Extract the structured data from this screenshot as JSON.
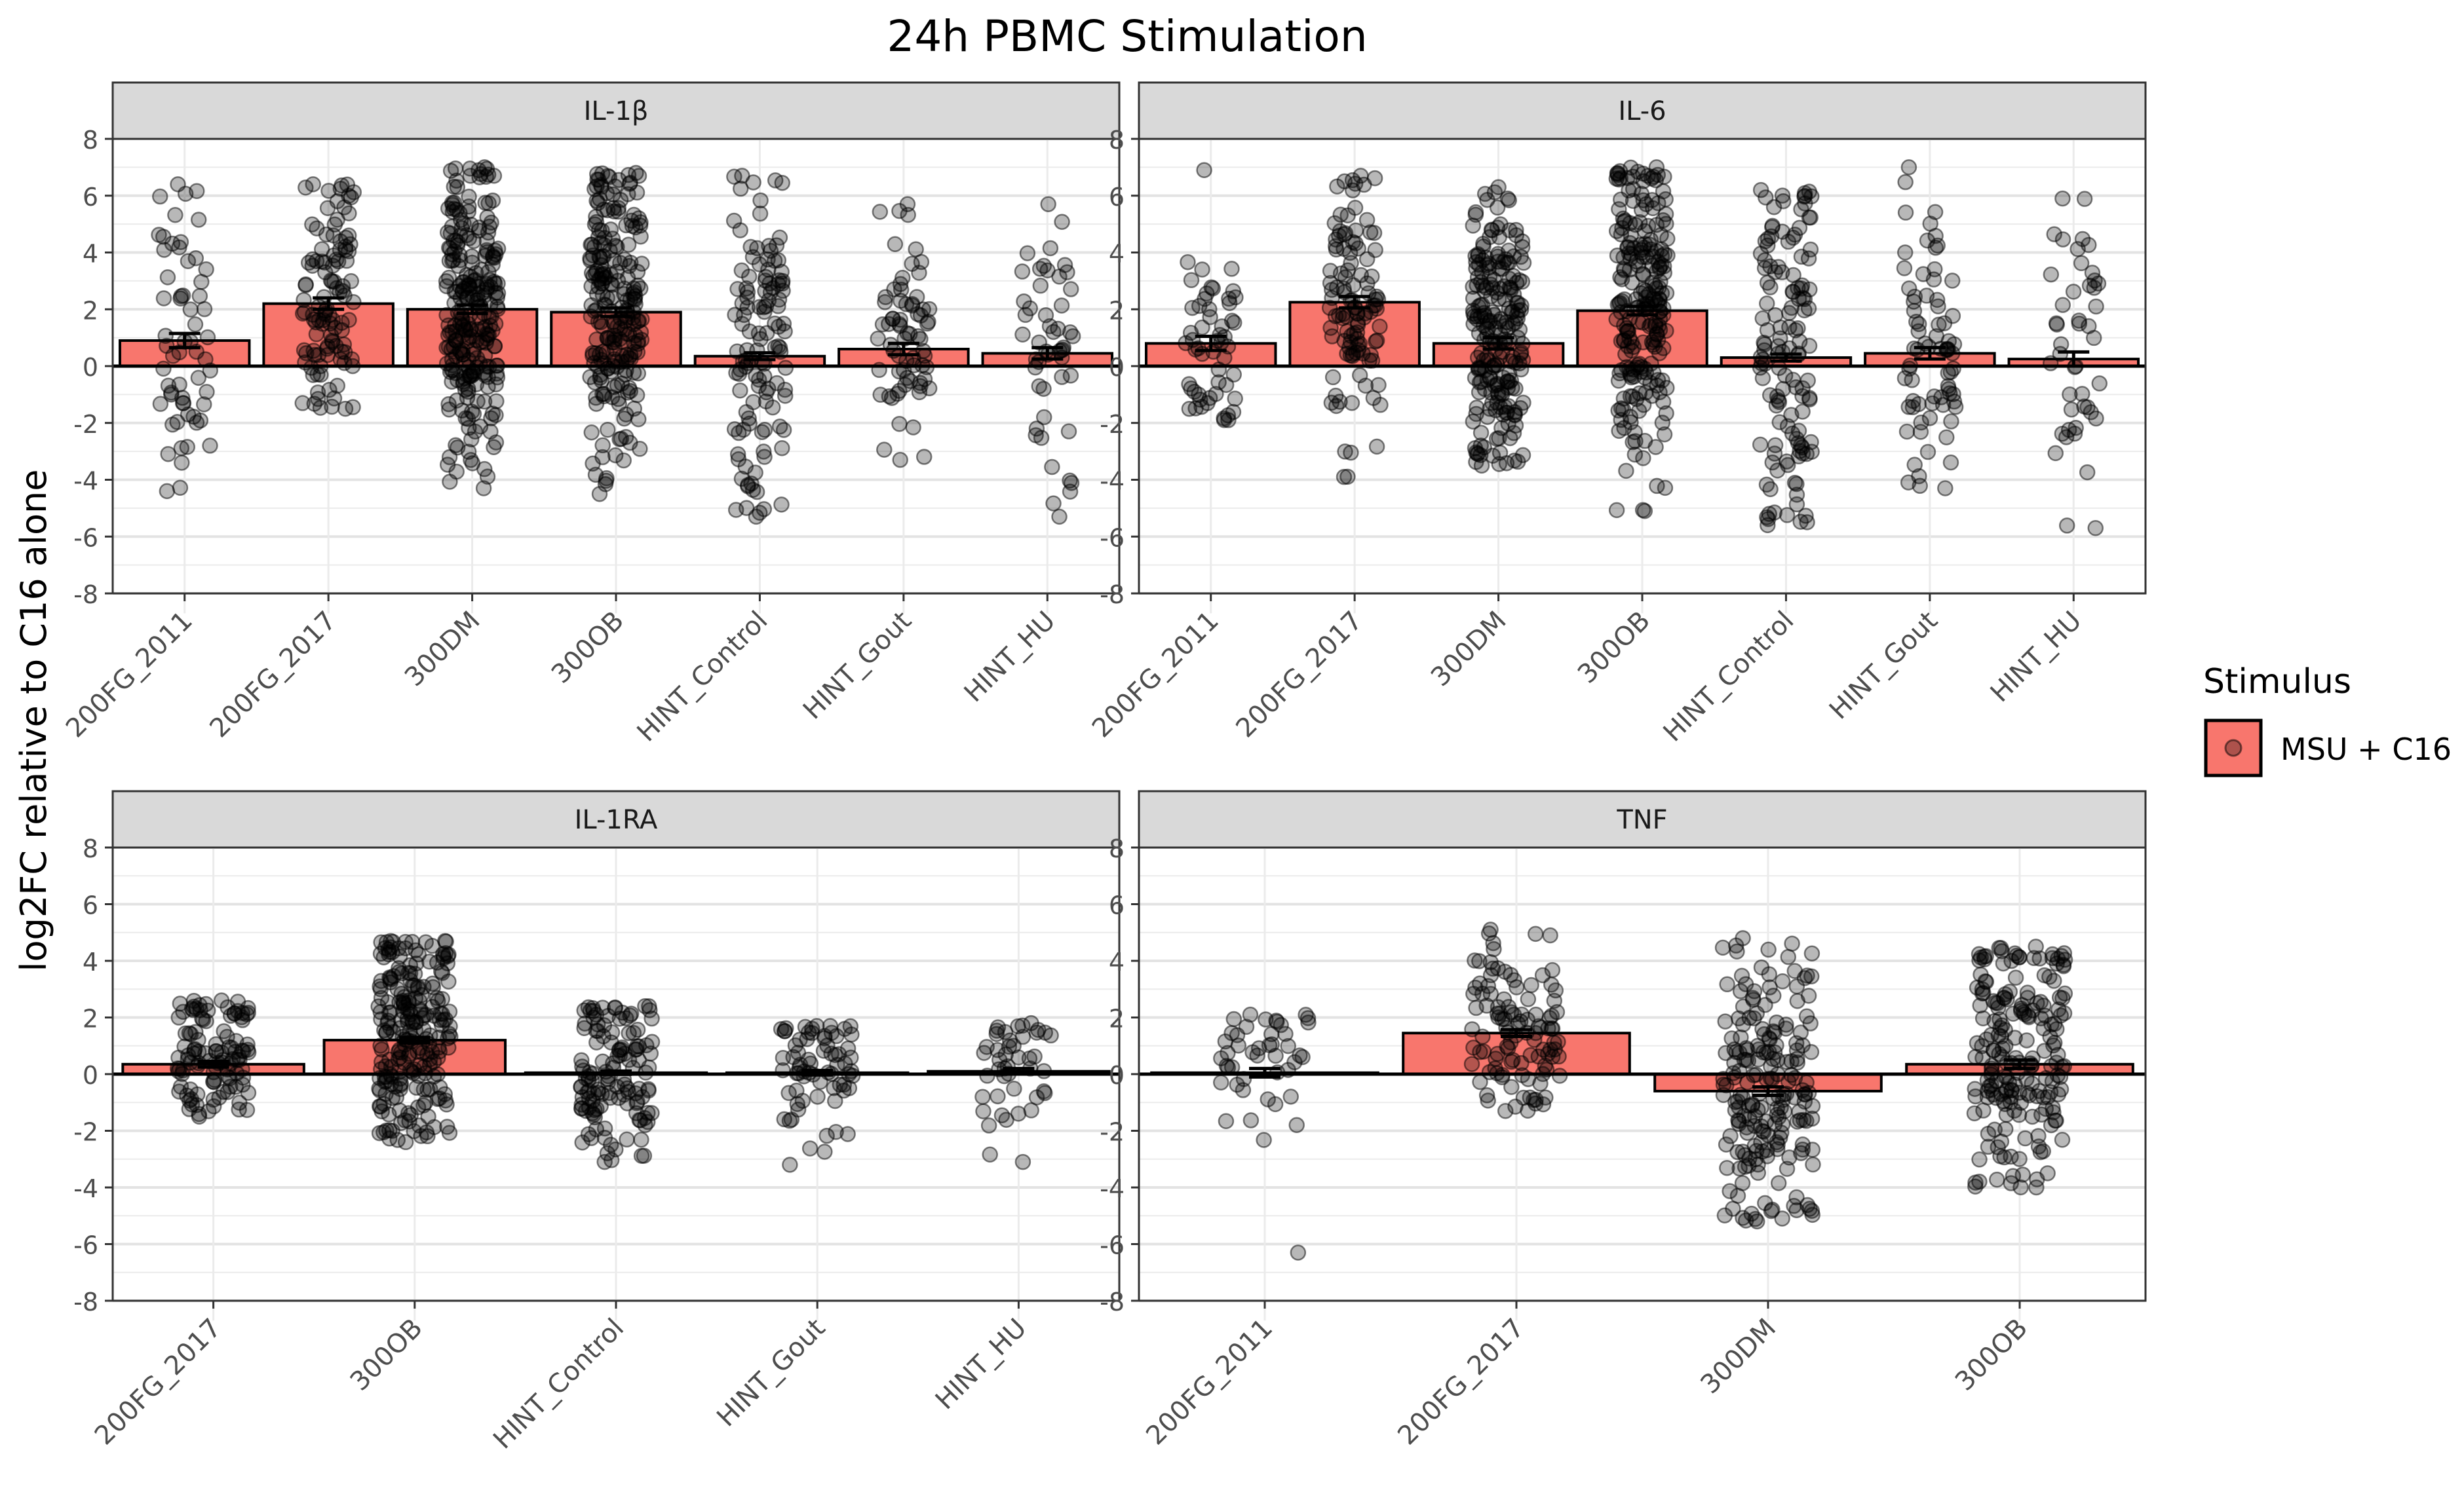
{
  "title": "24h PBMC Stimulation",
  "ylabel": "log2FC relative to C16 alone",
  "legend": {
    "title": "Stimulus",
    "items": [
      {
        "label": "MSU + C16",
        "color": "#F8766D"
      }
    ]
  },
  "colors": {
    "bar_fill": "#F8766D",
    "point": "#000000",
    "panel_strip": "#D9D9D9"
  },
  "chart_data": [
    {
      "type": "bar",
      "panel": "IL-1β",
      "categories": [
        "200FG_2011",
        "200FG_2017",
        "300DM",
        "300OB",
        "HINT_Control",
        "HINT_Gout",
        "HINT_HU"
      ],
      "values": [
        0.9,
        2.2,
        2.0,
        1.9,
        0.35,
        0.6,
        0.45
      ],
      "se": [
        0.25,
        0.2,
        0.15,
        0.15,
        0.12,
        0.2,
        0.2
      ],
      "points_n": [
        60,
        110,
        260,
        230,
        120,
        70,
        50
      ],
      "points_range": [
        [
          -4.4,
          6.4
        ],
        [
          -1.5,
          6.4
        ],
        [
          -4.3,
          7.0
        ],
        [
          -4.5,
          6.8
        ],
        [
          -5.3,
          6.7
        ],
        [
          -3.3,
          5.7
        ],
        [
          -5.3,
          5.7
        ]
      ],
      "ylim": [
        -8,
        8
      ],
      "yticks": [
        -8,
        -6,
        -4,
        -2,
        0,
        2,
        4,
        6,
        8
      ]
    },
    {
      "type": "bar",
      "panel": "IL-6",
      "categories": [
        "200FG_2011",
        "200FG_2017",
        "300DM",
        "300OB",
        "HINT_Control",
        "HINT_Gout",
        "HINT_HU"
      ],
      "values": [
        0.8,
        2.25,
        0.8,
        1.95,
        0.3,
        0.45,
        0.25
      ],
      "se": [
        0.25,
        0.2,
        0.2,
        0.15,
        0.12,
        0.2,
        0.25
      ],
      "points_n": [
        55,
        110,
        220,
        230,
        130,
        75,
        45
      ],
      "points_range": [
        [
          -1.9,
          6.9
        ],
        [
          -3.9,
          6.7
        ],
        [
          -3.5,
          6.3
        ],
        [
          -5.1,
          7.0
        ],
        [
          -5.6,
          6.2
        ],
        [
          -4.3,
          7.0
        ],
        [
          -5.7,
          5.9
        ]
      ],
      "ylim": [
        -8,
        8
      ],
      "yticks": [
        -8,
        -6,
        -4,
        -2,
        0,
        2,
        4,
        6,
        8
      ]
    },
    {
      "type": "bar",
      "panel": "IL-1RA",
      "categories": [
        "200FG_2017",
        "300OB",
        "HINT_Control",
        "HINT_Gout",
        "HINT_HU"
      ],
      "values": [
        0.35,
        1.2,
        0.05,
        0.05,
        0.1
      ],
      "se": [
        0.1,
        0.1,
        0.06,
        0.08,
        0.1
      ],
      "points_n": [
        110,
        230,
        130,
        70,
        45
      ],
      "points_range": [
        [
          -1.5,
          2.6
        ],
        [
          -2.4,
          4.7
        ],
        [
          -3.1,
          2.4
        ],
        [
          -3.2,
          1.7
        ],
        [
          -3.1,
          1.8
        ]
      ],
      "ylim": [
        -8,
        8
      ],
      "yticks": [
        -8,
        -6,
        -4,
        -2,
        0,
        2,
        4,
        6,
        8
      ]
    },
    {
      "type": "bar",
      "panel": "TNF",
      "categories": [
        "200FG_2011",
        "200FG_2017",
        "300DM",
        "300OB"
      ],
      "values": [
        0.05,
        1.45,
        -0.6,
        0.35
      ],
      "se": [
        0.15,
        0.12,
        0.15,
        0.15
      ],
      "points_n": [
        45,
        110,
        200,
        200
      ],
      "points_range": [
        [
          -6.3,
          2.1
        ],
        [
          -1.3,
          5.1
        ],
        [
          -5.2,
          4.8
        ],
        [
          -4.0,
          4.5
        ]
      ],
      "ylim": [
        -8,
        8
      ],
      "yticks": [
        -8,
        -6,
        -4,
        -2,
        0,
        2,
        4,
        6,
        8
      ]
    }
  ]
}
